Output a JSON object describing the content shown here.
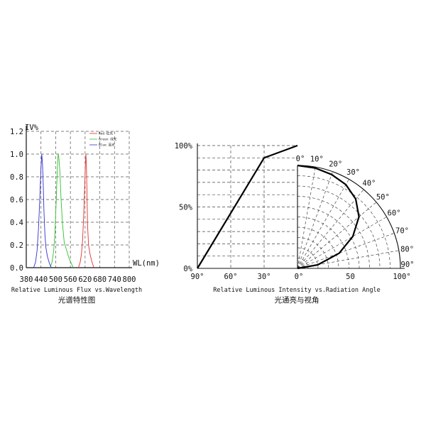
{
  "chart_data": [
    {
      "type": "line",
      "ylabel": "IV%",
      "xlabel": "WL(nm)",
      "caption": "Relative Luminous Flux vs.Wavelength",
      "caption_cn": "光谱特性图",
      "x_ticks": [
        "380",
        "440",
        "500",
        "560",
        "620",
        "680",
        "740",
        "800"
      ],
      "y_ticks": [
        "0.0",
        "0.2",
        "0.4",
        "0.6",
        "0.8",
        "1.0",
        "1.2"
      ],
      "xlim": [
        380,
        800
      ],
      "ylim": [
        0,
        1.2
      ],
      "grid": true,
      "legend_position": "top-right",
      "series": [
        {
          "name": "Red 红光",
          "color": "#e03030",
          "x": [
            593,
            600,
            605,
            610,
            614,
            618,
            621,
            623,
            625,
            627,
            630,
            634,
            640,
            648,
            656
          ],
          "y": [
            0.0,
            0.05,
            0.12,
            0.25,
            0.45,
            0.7,
            0.9,
            1.0,
            0.92,
            0.72,
            0.38,
            0.2,
            0.12,
            0.05,
            0.0
          ]
        },
        {
          "name": "Green 绿光",
          "color": "#30c030",
          "x": [
            478,
            485,
            492,
            498,
            503,
            507,
            510,
            513,
            517,
            522,
            528,
            535,
            545,
            555,
            565,
            572
          ],
          "y": [
            0.0,
            0.05,
            0.15,
            0.35,
            0.65,
            0.88,
            1.0,
            0.97,
            0.85,
            0.6,
            0.38,
            0.22,
            0.15,
            0.08,
            0.03,
            0.0
          ]
        },
        {
          "name": "Blue 蓝光",
          "color": "#3030d0",
          "x": [
            410,
            418,
            424,
            430,
            435,
            440,
            443,
            446,
            449,
            452,
            456,
            460,
            466,
            474,
            482
          ],
          "y": [
            0.0,
            0.05,
            0.15,
            0.35,
            0.6,
            0.88,
            1.0,
            0.92,
            0.75,
            0.5,
            0.3,
            0.18,
            0.1,
            0.04,
            0.0
          ]
        }
      ]
    },
    {
      "type": "polar",
      "caption": "Relative Luminous Intensity vs.Radiation Angle",
      "caption_cn": "光通亮与视角",
      "x_ticks_left": [
        "90°",
        "60°",
        "30°"
      ],
      "x_ticks_right": [
        "0°",
        "50",
        "100°"
      ],
      "y_ticks": [
        "0%",
        "50%",
        "100%"
      ],
      "angle_labels": [
        "0°",
        "10°",
        "20°",
        "30°",
        "40°",
        "50°",
        "60°",
        "70°",
        "80°",
        "90°"
      ],
      "grid": true,
      "series": [
        {
          "name": "",
          "angles_deg": [
            0,
            10,
            20,
            30,
            40,
            50,
            60,
            70,
            80,
            90
          ],
          "relative_intensity": [
            1.0,
            0.99,
            0.97,
            0.94,
            0.88,
            0.78,
            0.62,
            0.43,
            0.2,
            0.0
          ]
        },
        {
          "name": "",
          "horizontal_angle": [
            90,
            30,
            0
          ],
          "relative_intensity": [
            0.0,
            0.9,
            1.0
          ]
        }
      ]
    }
  ]
}
